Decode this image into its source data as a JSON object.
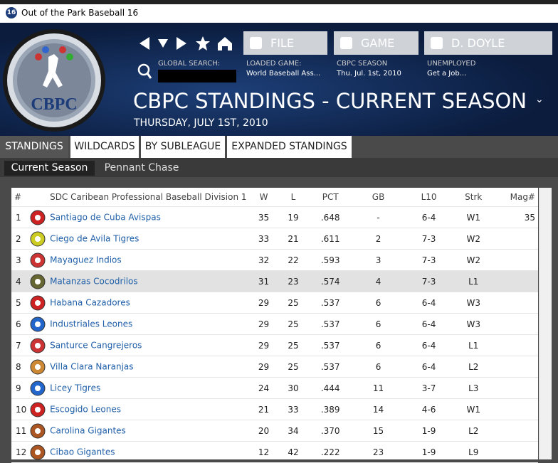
{
  "window": {
    "icon": "16",
    "title": "Out of the Park Baseball 16"
  },
  "logo": {
    "text": "CBPC"
  },
  "nav": {
    "buttons": [
      "FILE",
      "GAME",
      "D. DOYLE"
    ],
    "search_label": "GLOBAL SEARCH:",
    "info": [
      {
        "label": "LOADED GAME:",
        "value": "World Baseball Ass..."
      },
      {
        "label": "CBPC SEASON",
        "value": "Thu. Jul. 1st, 2010"
      },
      {
        "label": "UNEMPLOYED",
        "value": "Get a Job..."
      }
    ]
  },
  "header": {
    "title": "CBPC STANDINGS - CURRENT SEASON",
    "date": "THURSDAY, JULY 1ST, 2010"
  },
  "tabs": [
    "STANDINGS",
    "WILDCARDS",
    "BY SUBLEAGUE",
    "EXPANDED STANDINGS"
  ],
  "subtabs": [
    "Current Season",
    "Pennant Chase"
  ],
  "table": {
    "columns": [
      "#",
      "SDC Caribean Professional Baseball Division 1",
      "W",
      "L",
      "PCT",
      "GB",
      "L10",
      "Strk",
      "Mag#"
    ],
    "rows": [
      [
        "1",
        "Santiago de Cuba Avispas",
        "35",
        "19",
        ".648",
        "-",
        "6-4",
        "W1",
        "35"
      ],
      [
        "2",
        "Ciego de Avila Tigres",
        "33",
        "21",
        ".611",
        "2",
        "7-3",
        "W2"
      ],
      [
        "3",
        "Mayaguez Indios",
        "32",
        "22",
        ".593",
        "3",
        "7-3",
        "W2"
      ],
      [
        "4",
        "Matanzas Cocodrilos",
        "31",
        "23",
        ".574",
        "4",
        "7-3",
        "L1"
      ],
      [
        "5",
        "Habana Cazadores",
        "29",
        "25",
        ".537",
        "6",
        "6-4",
        "W3"
      ],
      [
        "6",
        "Industriales Leones",
        "29",
        "25",
        ".537",
        "6",
        "6-4",
        "W3"
      ],
      [
        "7",
        "Santurce Cangrejeros",
        "29",
        "25",
        ".537",
        "6",
        "6-4",
        "L1"
      ],
      [
        "8",
        "Villa Clara Naranjas",
        "29",
        "25",
        ".537",
        "6",
        "6-4",
        "L2"
      ],
      [
        "9",
        "Licey Tigres",
        "24",
        "30",
        ".444",
        "11",
        "3-7",
        "L3"
      ],
      [
        "10",
        "Escogido Leones",
        "21",
        "33",
        ".389",
        "14",
        "4-6",
        "W1"
      ],
      [
        "11",
        "Carolina Gigantes",
        "20",
        "34",
        ".370",
        "15",
        "1-9",
        "L2"
      ],
      [
        "12",
        "Cibao Gigantes",
        "12",
        "42",
        ".222",
        "23",
        "1-9",
        "L9"
      ]
    ]
  }
}
